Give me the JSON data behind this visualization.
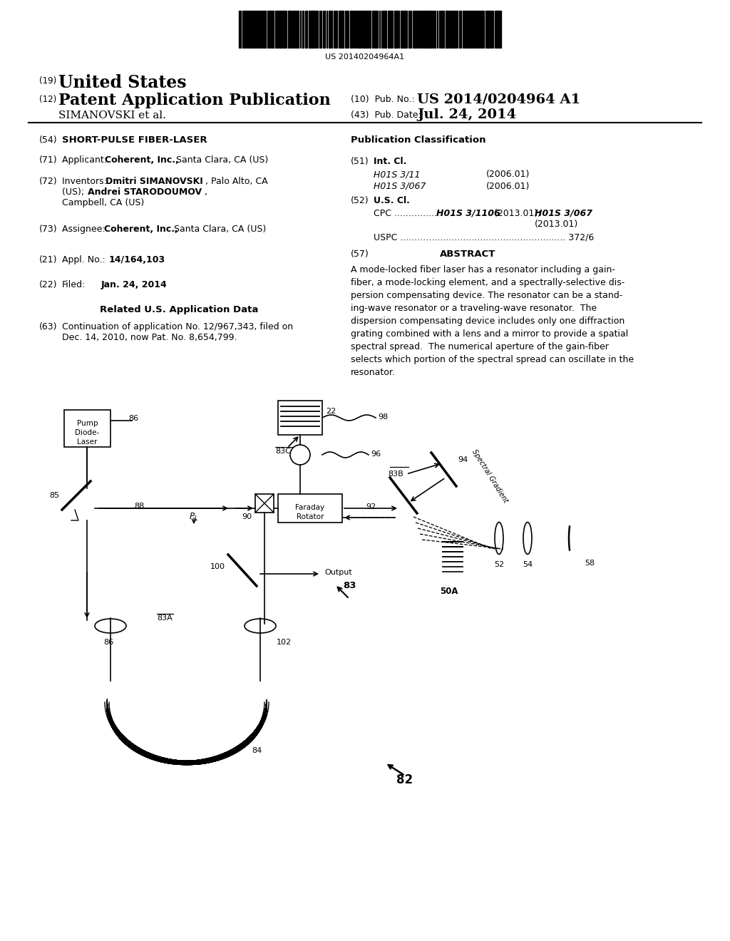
{
  "title": "SHORT-PULSE FIBER-LASER",
  "barcode_text": "US 20140204964A1",
  "country": "United States",
  "pub_type": "Patent Application Publication",
  "simanovski": "SIMANOVSKI et al.",
  "pub_no_label": "(10) Pub. No.:",
  "pub_no": "US 2014/0204964 A1",
  "pub_date_label": "(43) Pub. Date:",
  "pub_date": "Jul. 24, 2014",
  "bg_color": "#ffffff",
  "text_color": "#000000",
  "line_color": "#000000"
}
